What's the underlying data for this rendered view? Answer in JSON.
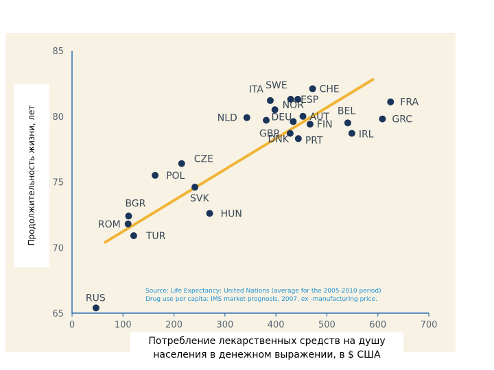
{
  "chart_data": {
    "type": "scatter",
    "ylabel": "Продолжительность жизни, лет",
    "xlabel_lines": [
      "Потребление лекарственных средств на душу",
      "населения в денежном выражении, в $ США"
    ],
    "xlim": [
      0,
      700
    ],
    "ylim": [
      65,
      85
    ],
    "x_ticks": [
      0,
      100,
      200,
      300,
      400,
      500,
      600,
      700
    ],
    "y_ticks": [
      65,
      70,
      75,
      80,
      85
    ],
    "grid": false,
    "source_lines": [
      "Source: Life Expectancy; United Nations (average for the 2005-2010 period)",
      "Drug use per capita: IMS market prognosis, 2007, ex -manufacturing price."
    ],
    "trendline": {
      "x": [
        65,
        590
      ],
      "y": [
        70.4,
        82.8
      ],
      "color": "#f0b437"
    },
    "point_color": "#1b3459",
    "points": [
      {
        "label": "RUS",
        "x": 47,
        "y": 65.4
      },
      {
        "label": "TUR",
        "x": 121,
        "y": 70.9
      },
      {
        "label": "ROM",
        "x": 110,
        "y": 71.8
      },
      {
        "label": "BGR",
        "x": 111,
        "y": 72.4
      },
      {
        "label": "POL",
        "x": 163,
        "y": 75.5
      },
      {
        "label": "CZE",
        "x": 215,
        "y": 76.4
      },
      {
        "label": "SVK",
        "x": 241,
        "y": 74.6
      },
      {
        "label": "HUN",
        "x": 270,
        "y": 72.6
      },
      {
        "label": "NLD",
        "x": 343,
        "y": 79.9
      },
      {
        "label": "ITA",
        "x": 389,
        "y": 81.2
      },
      {
        "label": "GBR",
        "x": 381,
        "y": 79.7
      },
      {
        "label": "DEU",
        "x": 434,
        "y": 79.6
      },
      {
        "label": "NOR",
        "x": 398,
        "y": 80.5
      },
      {
        "label": "SWE",
        "x": 429,
        "y": 81.3
      },
      {
        "label": "ESP",
        "x": 443,
        "y": 81.3
      },
      {
        "label": "CHE",
        "x": 472,
        "y": 82.1
      },
      {
        "label": "AUT",
        "x": 453,
        "y": 80.0
      },
      {
        "label": "FIN",
        "x": 467,
        "y": 79.4
      },
      {
        "label": "DNK",
        "x": 428,
        "y": 78.7
      },
      {
        "label": "PRT",
        "x": 444,
        "y": 78.3
      },
      {
        "label": "BEL",
        "x": 541,
        "y": 79.5
      },
      {
        "label": "IRL",
        "x": 549,
        "y": 78.7
      },
      {
        "label": "FRA",
        "x": 625,
        "y": 81.1
      },
      {
        "label": "GRC",
        "x": 609,
        "y": 79.8
      }
    ]
  }
}
